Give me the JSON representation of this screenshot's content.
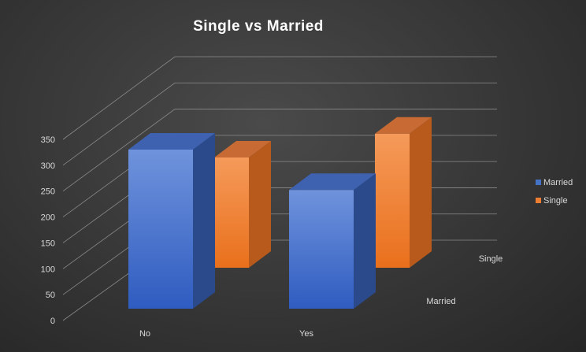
{
  "chart_data": {
    "type": "bar",
    "title": "Single vs Married",
    "categories": [
      "No",
      "Yes"
    ],
    "depth_labels": [
      "Married",
      "Single"
    ],
    "series": [
      {
        "name": "Married",
        "values": [
          315,
          235
        ],
        "color": "#4472c4"
      },
      {
        "name": "Single",
        "values": [
          255,
          310
        ],
        "color": "#ed7d31"
      }
    ],
    "yticks": [
      0,
      50,
      100,
      150,
      200,
      250,
      300,
      350
    ],
    "ylim": [
      0,
      350
    ],
    "grid": true,
    "legend_position": "right",
    "xlabel": "",
    "ylabel": ""
  }
}
